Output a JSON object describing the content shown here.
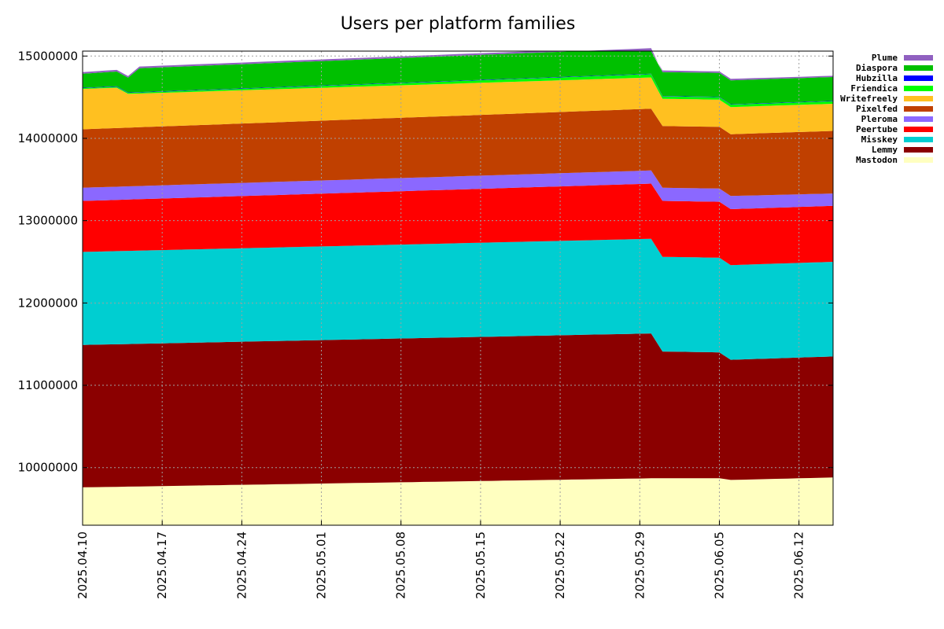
{
  "chart_data": {
    "type": "area",
    "title": "Users per platform families",
    "stacked": true,
    "x": [
      "2025.04.10",
      "2025.04.11",
      "2025.04.12",
      "2025.04.13",
      "2025.04.14",
      "2025.04.15",
      "2025.04.16",
      "2025.04.17",
      "2025.04.18",
      "2025.04.19",
      "2025.04.20",
      "2025.04.21",
      "2025.04.22",
      "2025.04.23",
      "2025.04.24",
      "2025.04.25",
      "2025.04.26",
      "2025.04.27",
      "2025.04.28",
      "2025.04.29",
      "2025.04.30",
      "2025.05.01",
      "2025.05.02",
      "2025.05.03",
      "2025.05.04",
      "2025.05.05",
      "2025.05.06",
      "2025.05.07",
      "2025.05.08",
      "2025.05.09",
      "2025.05.10",
      "2025.05.11",
      "2025.05.12",
      "2025.05.13",
      "2025.05.14",
      "2025.05.15",
      "2025.05.16",
      "2025.05.17",
      "2025.05.18",
      "2025.05.19",
      "2025.05.20",
      "2025.05.21",
      "2025.05.22",
      "2025.05.23",
      "2025.05.24",
      "2025.05.25",
      "2025.05.26",
      "2025.05.27",
      "2025.05.28",
      "2025.05.29",
      "2025.05.30",
      "2025.05.31",
      "2025.06.01",
      "2025.06.02",
      "2025.06.03",
      "2025.06.04",
      "2025.06.05",
      "2025.06.06",
      "2025.06.07",
      "2025.06.08",
      "2025.06.09",
      "2025.06.10",
      "2025.06.11",
      "2025.06.12",
      "2025.06.13",
      "2025.06.14",
      "2025.06.15"
    ],
    "xticks": [
      "2025.04.10",
      "2025.04.17",
      "2025.04.24",
      "2025.05.01",
      "2025.05.08",
      "2025.05.15",
      "2025.05.22",
      "2025.05.29",
      "2025.06.05",
      "2025.06.12"
    ],
    "ylim": [
      9300000,
      15060000
    ],
    "yticks": [
      10000000,
      11000000,
      12000000,
      13000000,
      14000000,
      15000000
    ],
    "grid": true,
    "legend_position": "right",
    "series": [
      {
        "name": "Mastodon",
        "color": "#ffffc0",
        "start": 9760000,
        "end": 9880000,
        "anchors": [
          [
            50,
            9870000
          ],
          [
            56,
            9870000
          ],
          [
            57,
            9850000
          ]
        ]
      },
      {
        "name": "Lemmy",
        "color": "#8b0000",
        "start": 1730000,
        "end": 1470000,
        "anchors": [
          [
            50,
            1760000
          ],
          [
            51,
            1540000
          ],
          [
            56,
            1530000
          ],
          [
            57,
            1460000
          ]
        ]
      },
      {
        "name": "Misskey",
        "color": "#00ced1",
        "start": 1130000,
        "end": 1150000,
        "anchors": [
          [
            50,
            1150000
          ],
          [
            51,
            1150000
          ]
        ]
      },
      {
        "name": "Peertube",
        "color": "#ff0000",
        "start": 620000,
        "end": 680000,
        "anchors": [
          [
            50,
            670000
          ],
          [
            51,
            680000
          ],
          [
            57,
            680000
          ]
        ]
      },
      {
        "name": "Pleroma",
        "color": "#8b68ff",
        "start": 160000,
        "end": 150000,
        "anchors": [
          [
            50,
            160000
          ],
          [
            51,
            160000
          ],
          [
            57,
            160000
          ]
        ]
      },
      {
        "name": "Pixelfed",
        "color": "#c04000",
        "start": 710000,
        "end": 760000,
        "anchors": [
          [
            50,
            750000
          ],
          [
            51,
            750000
          ],
          [
            57,
            750000
          ]
        ]
      },
      {
        "name": "Writefreely",
        "color": "#ffc020",
        "start": 490000,
        "end": 330000,
        "anchors": [
          [
            3,
            490000
          ],
          [
            4,
            410000
          ],
          [
            50,
            380000
          ],
          [
            51,
            330000
          ]
        ]
      },
      {
        "name": "Friendica",
        "color": "#00ff00",
        "start": 10000,
        "end": 30000,
        "anchors": [
          [
            50,
            40000
          ],
          [
            51,
            30000
          ]
        ]
      },
      {
        "name": "Hubzilla",
        "color": "#0000ff",
        "start": 5000,
        "end": 5000,
        "anchors": []
      },
      {
        "name": "Diaspora",
        "color": "#00c000",
        "start": 170000,
        "end": 290000,
        "anchors": [
          [
            3,
            180000
          ],
          [
            4,
            180000
          ],
          [
            5,
            290000
          ],
          [
            50,
            310000
          ],
          [
            51,
            290000
          ]
        ]
      },
      {
        "name": "Plume",
        "color": "#9060c0",
        "start": 20000,
        "end": 15000,
        "anchors": [
          [
            50,
            20000
          ]
        ]
      }
    ]
  }
}
